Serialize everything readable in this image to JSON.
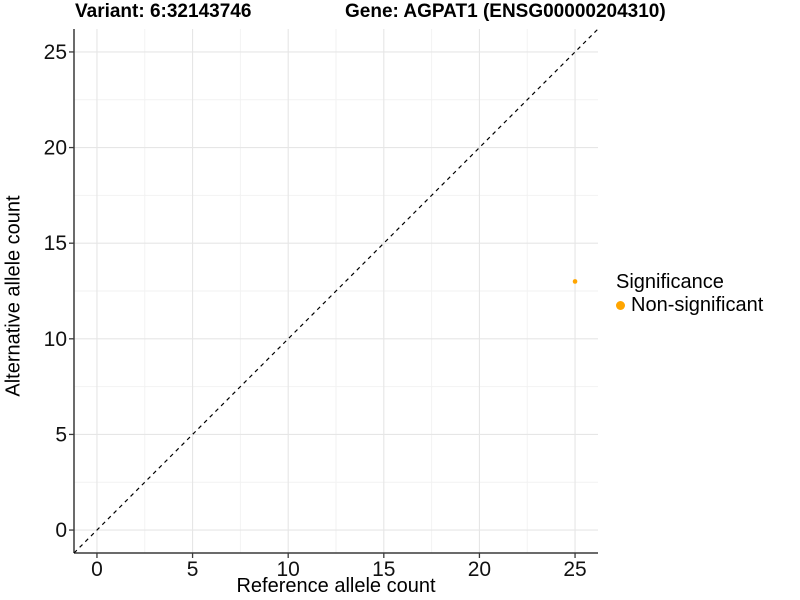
{
  "chart_data": {
    "type": "scatter",
    "title_left": "Variant: 6:32143746",
    "title_right": "Gene: AGPAT1 (ENSG00000204310)",
    "xlabel": "Reference allele count",
    "ylabel": "Alternative allele count",
    "xlim": [
      -1.2,
      26.2
    ],
    "ylim": [
      -1.2,
      26.2
    ],
    "xticks": [
      0,
      5,
      10,
      15,
      20,
      25
    ],
    "yticks": [
      0,
      5,
      10,
      15,
      20,
      25
    ],
    "minor_step": 2.5,
    "grid": "major+minor",
    "identity_line": {
      "style": "dashed",
      "color": "#000000",
      "from": [
        -1.2,
        -1.2
      ],
      "to": [
        26.2,
        26.2
      ]
    },
    "points": [
      {
        "x": 25,
        "y": 13,
        "significance": "Non-significant",
        "color": "#FFA500"
      }
    ],
    "legend": {
      "title": "Significance",
      "position": "right",
      "items": [
        {
          "label": "Non-significant",
          "color": "#FFA500"
        }
      ]
    },
    "colors": {
      "point": "#FFA500",
      "grid_major": "#E6E6E6",
      "grid_minor": "#F2F2F2",
      "axis": "#3a3a3a",
      "text": "#000000",
      "background": "#FFFFFF"
    }
  }
}
